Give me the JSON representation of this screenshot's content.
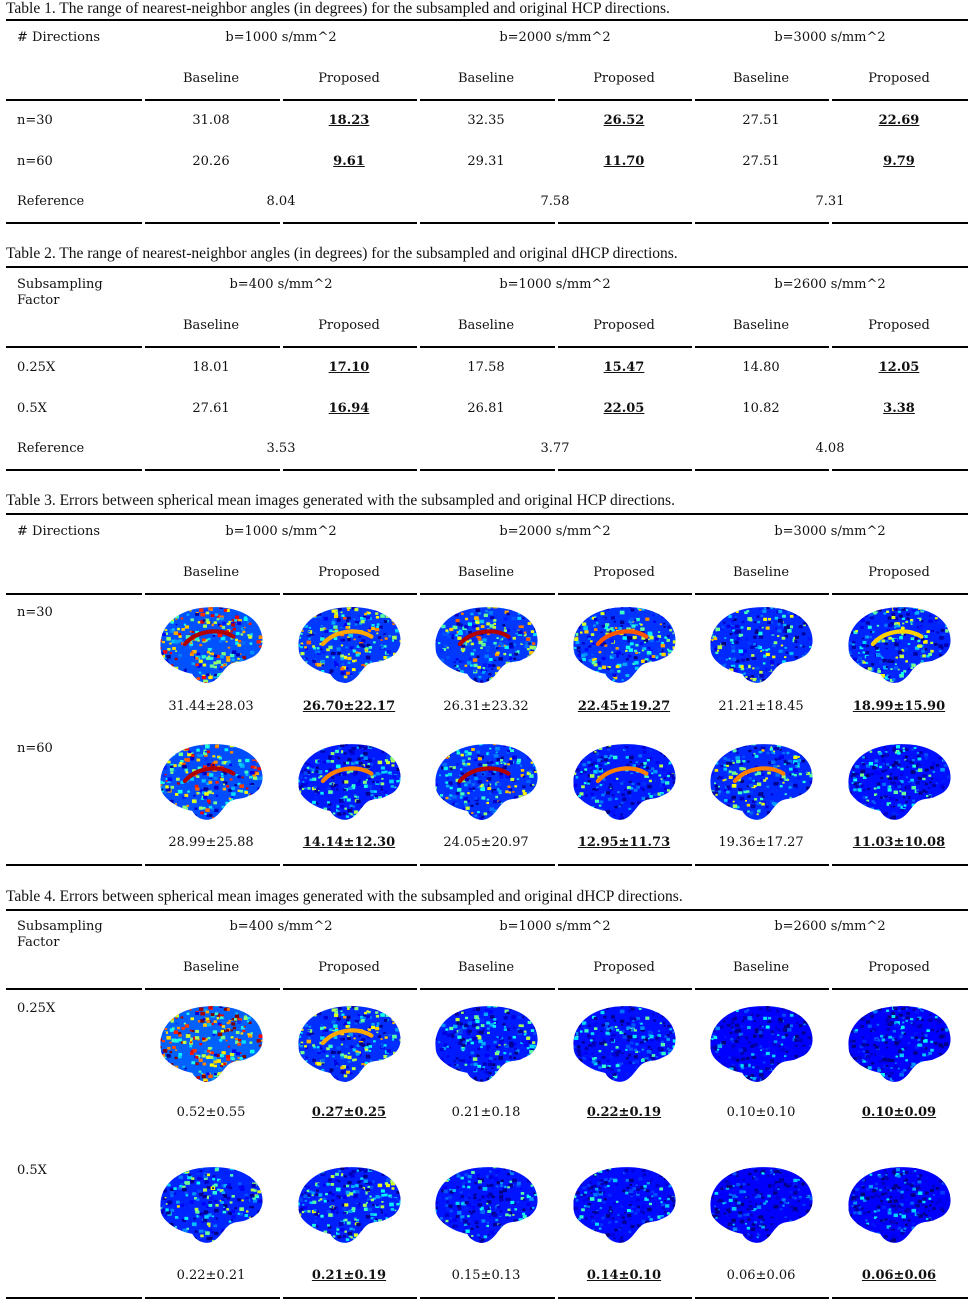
{
  "table1": {
    "caption": "Table 1. The range of nearest-neighbor angles (in degrees) for the subsampled and original HCP directions.",
    "row_header": "# Directions",
    "groups": [
      "b=1000 s/mm^2",
      "b=2000 s/mm^2",
      "b=3000 s/mm^2"
    ],
    "subheaders": [
      "Baseline",
      "Proposed",
      "Baseline",
      "Proposed",
      "Baseline",
      "Proposed"
    ],
    "rows": [
      {
        "label": "n=30",
        "values": [
          "31.08",
          "18.23",
          "32.35",
          "26.52",
          "27.51",
          "22.69"
        ]
      },
      {
        "label": "n=60",
        "values": [
          "20.26",
          "9.61",
          "29.31",
          "11.70",
          "27.51",
          "9.79"
        ]
      }
    ],
    "reference": {
      "label": "Reference",
      "values": [
        "8.04",
        "7.58",
        "7.31"
      ]
    }
  },
  "table2": {
    "caption": "Table 2.  The range of nearest-neighbor angles (in degrees) for the subsampled and original dHCP directions.",
    "row_header": "Subsampling Factor",
    "groups": [
      "b=400 s/mm^2",
      "b=1000 s/mm^2",
      "b=2600 s/mm^2"
    ],
    "subheaders": [
      "Baseline",
      "Proposed",
      "Baseline",
      "Proposed",
      "Baseline",
      "Proposed"
    ],
    "rows": [
      {
        "label": "0.25X",
        "values": [
          "18.01",
          "17.10",
          "17.58",
          "15.47",
          "14.80",
          "12.05"
        ]
      },
      {
        "label": "0.5X",
        "values": [
          "27.61",
          "16.94",
          "26.81",
          "22.05",
          "10.82",
          "3.38"
        ]
      }
    ],
    "reference": {
      "label": "Reference",
      "values": [
        "3.53",
        "3.77",
        "4.08"
      ]
    }
  },
  "table3": {
    "caption": "Table 3. Errors between spherical mean images generated with the subsampled and original HCP directions.",
    "row_header": "# Directions",
    "groups": [
      "b=1000 s/mm^2",
      "b=2000 s/mm^2",
      "b=3000 s/mm^2"
    ],
    "subheaders": [
      "Baseline",
      "Proposed",
      "Baseline",
      "Proposed",
      "Baseline",
      "Proposed"
    ],
    "rows": [
      {
        "label": "n=30",
        "values": [
          "31.44±28.03",
          "26.70±22.17",
          "26.31±23.32",
          "22.45±19.27",
          "21.21±18.45",
          "18.99±15.90"
        ]
      },
      {
        "label": "n=60",
        "values": [
          "28.99±25.88",
          "14.14±12.30",
          "24.05±20.97",
          "12.95±11.73",
          "19.36±17.27",
          "11.03±10.08"
        ]
      }
    ]
  },
  "table4": {
    "caption": "Table 4. Errors between spherical mean images generated with the subsampled and original dHCP directions.",
    "row_header": "Subsampling Factor",
    "groups": [
      "b=400 s/mm^2",
      "b=1000 s/mm^2",
      "b=2600 s/mm^2"
    ],
    "subheaders": [
      "Baseline",
      "Proposed",
      "Baseline",
      "Proposed",
      "Baseline",
      "Proposed"
    ],
    "rows": [
      {
        "label": "0.25X",
        "values": [
          "0.52±0.55",
          "0.27±0.25",
          "0.21±0.18",
          "0.22±0.19",
          "0.10±0.10",
          "0.10±0.09"
        ]
      },
      {
        "label": "0.5X",
        "values": [
          "0.22±0.21",
          "0.21±0.19",
          "0.15±0.13",
          "0.14±0.10",
          "0.06±0.06",
          "0.06±0.06"
        ]
      }
    ]
  },
  "colors": {
    "colormap": "jet",
    "background": "#ffffff",
    "rule": "#000000"
  }
}
